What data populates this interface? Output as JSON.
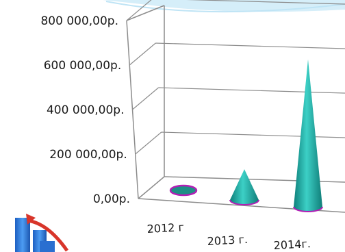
{
  "chart_data": {
    "type": "bar",
    "style": "3d-cone",
    "categories": [
      "2012 г",
      "2013 г.",
      "2014г."
    ],
    "values": [
      0,
      150000,
      720000
    ],
    "ylim": [
      0,
      800000
    ],
    "yticks": [
      "0,00р.",
      "200 000,00р.",
      "400 000,00р.",
      "600 000,00р.",
      "800 000,00р."
    ],
    "grid": true,
    "legend": "none",
    "colors": {
      "cone_fill": "#26b8b0",
      "cone_base_rim": "#b21fb5",
      "gridline": "#8c8c8c",
      "wall": "#ffffff"
    }
  },
  "decoration": {
    "top_wave_color": "#bfe4f5",
    "corner_icon": "rising-bars-chart-icon"
  }
}
